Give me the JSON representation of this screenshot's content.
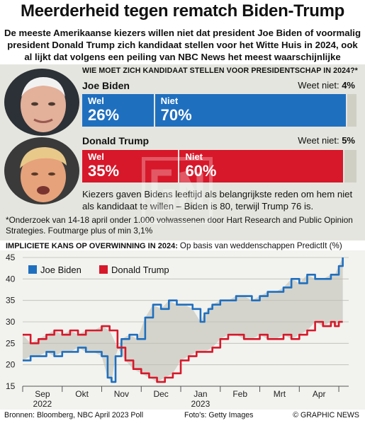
{
  "title": "Meerderheid tegen rematch Biden-Trump",
  "subtitle": "De meeste Amerikaanse kiezers willen niet dat president Joe Biden of voormalig president Donald Trump zich kandidaat stellen voor het Witte Huis in 2024, ook al lijkt dat volgens een peiling van NBC News het meest waarschijnlijke scenario",
  "poll": {
    "question": "WIE MOET ZICH KANDIDAAT STELLEN VOOR PRESIDENTSCHAP IN 2024?*",
    "dont_know_label": "Weet niet:",
    "candidates": [
      {
        "name": "Joe Biden",
        "yes_label": "Wel",
        "yes": "26%",
        "yes_value": 26,
        "no_label": "Niet",
        "no": "70%",
        "no_value": 70,
        "dont_know": "4%",
        "dont_know_value": 4,
        "color": "#1f6fbf"
      },
      {
        "name": "Donald Trump",
        "yes_label": "Wel",
        "yes": "35%",
        "yes_value": 35,
        "no_label": "Niet",
        "no": "60%",
        "no_value": 60,
        "dont_know": "5%",
        "dont_know_value": 5,
        "color": "#d7182a"
      }
    ],
    "reason": "Kiezers gaven Bidens leeftijd als belangrijkste reden om hem niet als kandidaat te willen – Biden is 80, terwijl Trump 76 is.",
    "footnote": "*Onderzoek van 14-18 april onder 1.000 volwassenen door Hart Research and Public Opinion Strategies. Foutmarge plus of min 3,1%"
  },
  "chart_data": {
    "type": "line",
    "title": "IMPLICIETE KANS OP OVERWINNING IN 2024:",
    "subtitle": "Op basis van weddenschappen PredictIt (%)",
    "ylim": [
      15,
      45
    ],
    "yticks": [
      15,
      20,
      25,
      30,
      35,
      40,
      45
    ],
    "xlim": [
      0,
      8.25
    ],
    "xticks": [
      {
        "label": "Sep",
        "pos": 0.5
      },
      {
        "label": "Okt",
        "pos": 1.5
      },
      {
        "label": "Nov",
        "pos": 2.5
      },
      {
        "label": "Dec",
        "pos": 3.5
      },
      {
        "label": "Jan",
        "pos": 4.5
      },
      {
        "label": "Feb",
        "pos": 5.5
      },
      {
        "label": "Mrt",
        "pos": 6.5
      },
      {
        "label": "Apr",
        "pos": 7.5
      }
    ],
    "year_labels": [
      {
        "label": "2022",
        "pos": 0.5
      },
      {
        "label": "2023",
        "pos": 4.5
      }
    ],
    "grid": true,
    "legend": "top-left",
    "series": [
      {
        "name": "Joe Biden",
        "color": "#1f6fbf",
        "x": [
          0,
          0.2,
          0.4,
          0.6,
          0.8,
          1.0,
          1.2,
          1.4,
          1.6,
          1.8,
          2.0,
          2.15,
          2.25,
          2.35,
          2.5,
          2.7,
          2.9,
          3.1,
          3.3,
          3.5,
          3.7,
          3.9,
          4.1,
          4.3,
          4.5,
          4.6,
          4.7,
          4.8,
          5.0,
          5.2,
          5.4,
          5.6,
          5.8,
          6.0,
          6.2,
          6.4,
          6.6,
          6.8,
          7.0,
          7.2,
          7.4,
          7.6,
          7.8,
          7.9,
          8.0,
          8.1
        ],
        "values": [
          21,
          22,
          22,
          23,
          22,
          23,
          23,
          24,
          23,
          23,
          22,
          17,
          16,
          22,
          26,
          27,
          26,
          31,
          34,
          33,
          35,
          34,
          34,
          33,
          30,
          32,
          33,
          34,
          35,
          35,
          36,
          36,
          35,
          36,
          37,
          37,
          38,
          40,
          39,
          41,
          40,
          40,
          41,
          41,
          43,
          45
        ]
      },
      {
        "name": "Donald Trump",
        "color": "#d7182a",
        "x": [
          0,
          0.2,
          0.4,
          0.6,
          0.8,
          1.0,
          1.2,
          1.4,
          1.6,
          1.8,
          2.0,
          2.2,
          2.4,
          2.6,
          2.8,
          3.0,
          3.2,
          3.4,
          3.6,
          3.8,
          4.0,
          4.2,
          4.4,
          4.6,
          4.8,
          5.0,
          5.2,
          5.4,
          5.6,
          5.8,
          6.0,
          6.2,
          6.4,
          6.6,
          6.8,
          7.0,
          7.2,
          7.4,
          7.6,
          7.8,
          7.9,
          8.0,
          8.1
        ],
        "values": [
          27,
          25,
          26,
          27,
          28,
          27,
          28,
          27,
          28,
          28,
          29,
          28,
          24,
          21,
          19,
          18,
          17,
          16,
          17,
          18,
          21,
          22,
          23,
          23,
          24,
          26,
          27,
          27,
          26,
          26,
          27,
          26,
          26,
          27,
          26,
          27,
          28,
          30,
          29,
          30,
          29,
          30,
          30
        ]
      }
    ]
  },
  "footer": {
    "source": "Bronnen: Bloomberg, NBC April 2023 Poll",
    "credit": "Foto's: Getty Images",
    "logo": "© GRAPHIC NEWS"
  }
}
